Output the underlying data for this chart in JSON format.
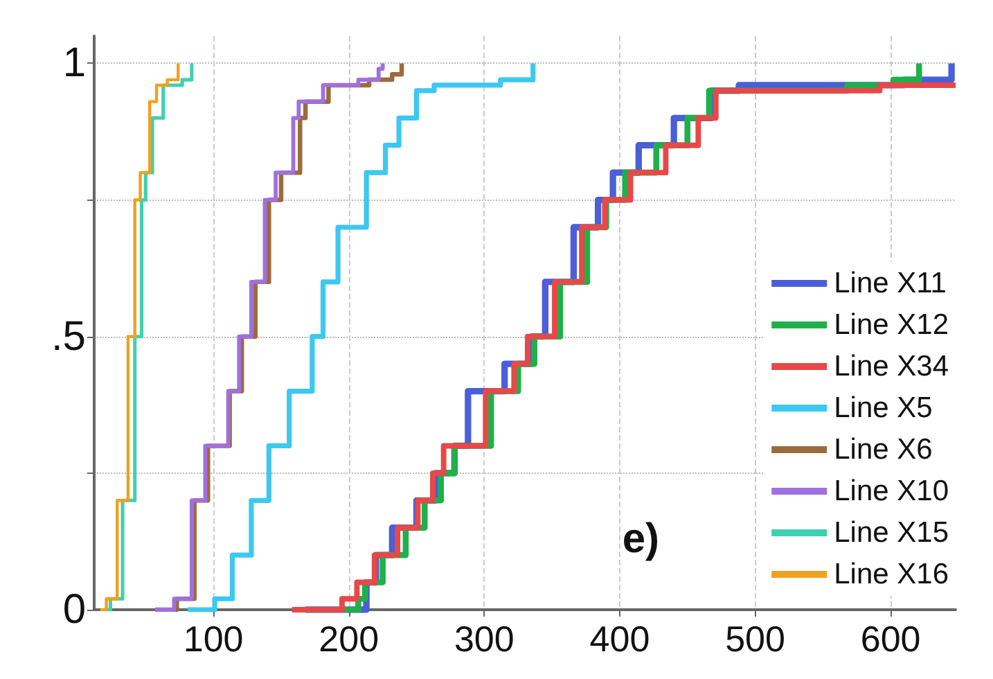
{
  "chart_data": {
    "type": "step",
    "annotations": [
      "e)"
    ],
    "xlim": [
      12,
      648
    ],
    "ylim": [
      0,
      1.05
    ],
    "xticks": [
      100,
      200,
      300,
      400,
      500,
      600
    ],
    "yticks": [
      0,
      {
        "value": 0.25,
        "label": null
      },
      {
        "value": 0.5,
        "label": ".5"
      },
      {
        "value": 0.75,
        "label": null
      },
      1
    ],
    "grid": true,
    "legend": "bottom right",
    "line_style": "solid",
    "marker": "none",
    "series": [
      {
        "name": "Line X11",
        "color": "#4a5fd8",
        "x": [
          168,
          213,
          220,
          232,
          250,
          264,
          278,
          288,
          315,
          335,
          345,
          366,
          384,
          395,
          414,
          440,
          468,
          488,
          610,
          645
        ],
        "values": [
          0,
          0.05,
          0.1,
          0.15,
          0.2,
          0.25,
          0.3,
          0.4,
          0.45,
          0.5,
          0.6,
          0.7,
          0.75,
          0.8,
          0.85,
          0.9,
          0.95,
          0.96,
          0.97,
          1
        ]
      },
      {
        "name": "Line X12",
        "color": "#1fb04a",
        "x": [
          166,
          207,
          212,
          225,
          242,
          256,
          268,
          278,
          305,
          325,
          337,
          356,
          376,
          390,
          404,
          427,
          450,
          466,
          568,
          602,
          621
        ],
        "values": [
          0,
          0.02,
          0.05,
          0.1,
          0.15,
          0.2,
          0.25,
          0.3,
          0.4,
          0.45,
          0.5,
          0.6,
          0.7,
          0.75,
          0.8,
          0.85,
          0.9,
          0.95,
          0.96,
          0.97,
          1
        ]
      },
      {
        "name": "Line X34",
        "color": "#e84848",
        "x": [
          158,
          195,
          206,
          219,
          236,
          251,
          262,
          270,
          301,
          322,
          332,
          352,
          372,
          389,
          408,
          434,
          458,
          471,
          592,
          648
        ],
        "values": [
          0,
          0.02,
          0.05,
          0.1,
          0.15,
          0.2,
          0.25,
          0.3,
          0.4,
          0.45,
          0.5,
          0.6,
          0.7,
          0.75,
          0.8,
          0.85,
          0.9,
          0.95,
          0.96,
          0.96
        ]
      },
      {
        "name": "Line X5",
        "color": "#3cc8f0",
        "x": [
          81,
          101,
          114,
          128,
          141,
          156,
          173,
          181,
          192,
          213,
          227,
          237,
          250,
          263,
          312,
          336
        ],
        "values": [
          0,
          0.02,
          0.1,
          0.2,
          0.3,
          0.4,
          0.5,
          0.6,
          0.7,
          0.8,
          0.85,
          0.9,
          0.95,
          0.96,
          0.97,
          1
        ]
      },
      {
        "name": "Line X6",
        "color": "#9c6b3c",
        "x": [
          57,
          73,
          86,
          96,
          112,
          121,
          131,
          141,
          150,
          164,
          168,
          185,
          215,
          232,
          239
        ],
        "values": [
          0,
          0.02,
          0.2,
          0.3,
          0.4,
          0.5,
          0.6,
          0.75,
          0.8,
          0.9,
          0.93,
          0.96,
          0.97,
          0.98,
          1
        ]
      },
      {
        "name": "Line X10",
        "color": "#a070e0",
        "x": [
          57,
          71,
          84,
          94,
          111,
          119,
          128,
          138,
          146,
          159,
          163,
          181,
          207,
          222,
          225
        ],
        "values": [
          0,
          0.02,
          0.2,
          0.3,
          0.4,
          0.5,
          0.6,
          0.75,
          0.8,
          0.9,
          0.93,
          0.96,
          0.97,
          0.99,
          1
        ]
      },
      {
        "name": "Line X15",
        "color": "#40d0b0",
        "x": [
          21,
          24,
          33,
          42,
          47,
          50,
          55,
          63,
          77,
          84
        ],
        "values": [
          0,
          0.02,
          0.2,
          0.5,
          0.75,
          0.8,
          0.9,
          0.96,
          0.97,
          1
        ]
      },
      {
        "name": "Line X16",
        "color": "#f0a020",
        "x": [
          16.5,
          21,
          29,
          37,
          42,
          46,
          53,
          58,
          66,
          74
        ],
        "values": [
          0,
          0.02,
          0.2,
          0.5,
          0.75,
          0.8,
          0.93,
          0.96,
          0.97,
          1
        ]
      }
    ]
  }
}
